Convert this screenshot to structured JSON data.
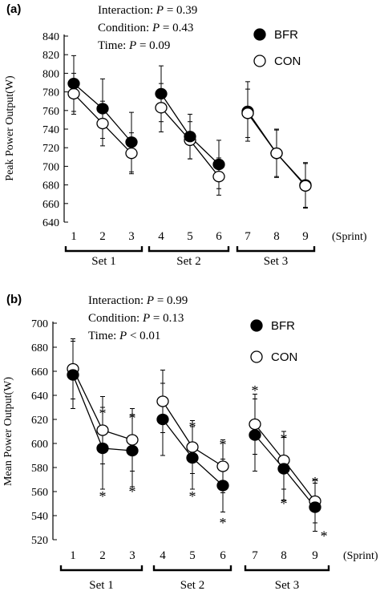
{
  "chart_data": [
    {
      "type": "line",
      "panel_label": "(a)",
      "ylabel": "Peak Power Output(W)",
      "xlabel_unit": "(Sprint)",
      "ylim": [
        640,
        840
      ],
      "yticks": [
        640,
        660,
        680,
        700,
        720,
        740,
        760,
        780,
        800,
        820,
        840
      ],
      "x": [
        1,
        2,
        3,
        4,
        5,
        6,
        7,
        8,
        9
      ],
      "groups": [
        [
          1,
          2,
          3
        ],
        [
          4,
          5,
          6
        ],
        [
          7,
          8,
          9
        ]
      ],
      "set_labels": [
        "Set 1",
        "Set 2",
        "Set 3"
      ],
      "stats": [
        {
          "label": "Interaction: ",
          "p": "P",
          "value": " = 0.39"
        },
        {
          "label": "Condition: ",
          "p": "P",
          "value": " = 0.43"
        },
        {
          "label": "Time:  ",
          "p": "P",
          "value": " = 0.09"
        }
      ],
      "series": [
        {
          "name": "BFR",
          "marker": "filled",
          "values": [
            789,
            762,
            726,
            778,
            732,
            702,
            759,
            714,
            680
          ],
          "err": [
            30,
            32,
            32,
            30,
            24,
            26,
            32,
            26,
            24
          ]
        },
        {
          "name": "CON",
          "marker": "open",
          "values": [
            778,
            746,
            714,
            763,
            728,
            689,
            757,
            714,
            679
          ],
          "err": [
            22,
            24,
            22,
            26,
            20,
            20,
            26,
            25,
            24
          ]
        }
      ],
      "asterisks": []
    },
    {
      "type": "line",
      "panel_label": "(b)",
      "ylabel": "Mean Power Output(W)",
      "xlabel_unit": "(Sprint)",
      "ylim": [
        520,
        700
      ],
      "yticks": [
        520,
        540,
        560,
        580,
        600,
        620,
        640,
        660,
        680,
        700
      ],
      "x": [
        1,
        2,
        3,
        4,
        5,
        6,
        7,
        8,
        9
      ],
      "groups": [
        [
          1,
          2,
          3
        ],
        [
          4,
          5,
          6
        ],
        [
          7,
          8,
          9
        ]
      ],
      "set_labels": [
        "Set 1",
        "Set 2",
        "Set 3"
      ],
      "stats": [
        {
          "label": "Interaction: ",
          "p": "P",
          "value": " = 0.99"
        },
        {
          "label": "Condition: ",
          "p": "P",
          "value": " = 0.13"
        },
        {
          "label": "Time:  ",
          "p": "P",
          "value": " < 0.01"
        }
      ],
      "series": [
        {
          "name": "BFR",
          "marker": "filled",
          "values": [
            657,
            596,
            594,
            620,
            588,
            565,
            607,
            579,
            547
          ],
          "err": [
            28,
            34,
            30,
            30,
            26,
            22,
            30,
            26,
            20
          ]
        },
        {
          "name": "CON",
          "marker": "open",
          "values": [
            662,
            611,
            603,
            635,
            597,
            581,
            616,
            586,
            552
          ],
          "err": [
            25,
            28,
            26,
            26,
            22,
            22,
            25,
            24,
            18
          ]
        }
      ],
      "asterisks": [
        {
          "x": 2,
          "y": 627,
          "text": "*"
        },
        {
          "x": 2,
          "y": 558,
          "text": "*"
        },
        {
          "x": 3,
          "y": 623,
          "text": "*"
        },
        {
          "x": 3,
          "y": 562,
          "text": "*"
        },
        {
          "x": 5,
          "y": 616,
          "text": "*"
        },
        {
          "x": 5,
          "y": 558,
          "text": "*"
        },
        {
          "x": 6,
          "y": 601,
          "text": "*"
        },
        {
          "x": 6,
          "y": 536,
          "text": "*"
        },
        {
          "x": 7,
          "y": 646,
          "text": "*"
        },
        {
          "x": 8,
          "y": 606,
          "text": "*"
        },
        {
          "x": 8,
          "y": 552,
          "text": "*"
        },
        {
          "x": 9,
          "y": 570,
          "text": "*"
        },
        {
          "x": 9.3,
          "y": 525,
          "text": "*"
        }
      ]
    }
  ]
}
